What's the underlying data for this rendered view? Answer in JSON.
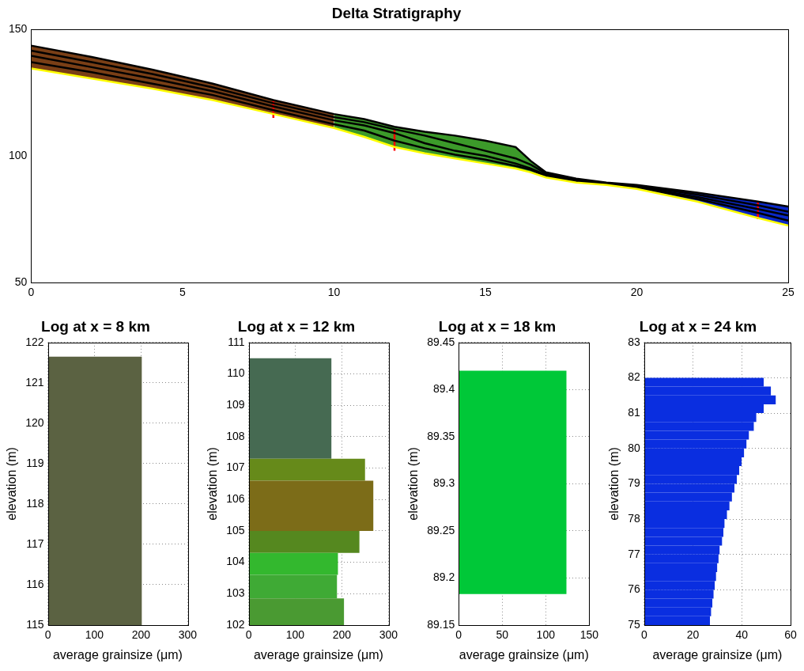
{
  "chart_data": [
    {
      "type": "line",
      "title": "Delta Stratigraphy",
      "xlim": [
        0,
        25
      ],
      "xticks": [
        0,
        5,
        10,
        15,
        20,
        25
      ],
      "ylim": [
        50,
        150
      ],
      "yticks": [
        50,
        100,
        150
      ],
      "grid": false,
      "series": [
        {
          "type": "area",
          "color": "#7a3f16",
          "x": [
            0,
            2,
            4,
            6,
            8,
            10
          ],
          "values": [
            143.5,
            139,
            134,
            128.5,
            122,
            116.5
          ],
          "lower": [
            134.5,
            130.5,
            126.5,
            122,
            116.5,
            111
          ]
        },
        {
          "type": "area",
          "color": "#3c9a2a",
          "x": [
            10,
            11,
            12,
            13,
            14,
            15,
            16,
            16.5,
            17
          ],
          "values": [
            116.5,
            114.5,
            111.5,
            109.5,
            108,
            106,
            103.5,
            98,
            93.5
          ],
          "lower": [
            111,
            107.5,
            103.5,
            101,
            99,
            97,
            95,
            93.5,
            91.5
          ]
        },
        {
          "type": "area",
          "color": "#0a28c8",
          "x": [
            17,
            18,
            19,
            20,
            22,
            24,
            25
          ],
          "values": [
            93.5,
            91,
            89.5,
            88.5,
            85.5,
            82,
            80
          ],
          "lower": [
            91.5,
            89.5,
            88.5,
            87,
            82,
            75.5,
            72.5
          ]
        },
        {
          "type": "line",
          "color": "#ffff00",
          "x": [
            0,
            2,
            4,
            6,
            8,
            10,
            11,
            12,
            13,
            14,
            15,
            16,
            16.5,
            17,
            18,
            19,
            20,
            22,
            24,
            25
          ],
          "values": [
            134.5,
            130.5,
            126.5,
            122,
            116.5,
            111,
            107.5,
            103.5,
            101,
            99,
            97,
            95,
            93.5,
            91.5,
            89.5,
            88.5,
            87,
            82,
            75.5,
            72.5
          ]
        },
        {
          "type": "line",
          "color": "#000000",
          "x": [
            0,
            2,
            4,
            6,
            8,
            10,
            11,
            12,
            13,
            14,
            15,
            16,
            16.5,
            17,
            18,
            19,
            20,
            22,
            24,
            25
          ],
          "values": [
            137,
            133,
            128.5,
            124,
            118,
            112.5,
            110,
            106,
            103,
            100.5,
            98.5,
            96,
            94.5,
            92,
            89.8,
            88.8,
            87.5,
            83,
            77.5,
            74.5
          ]
        },
        {
          "type": "line",
          "color": "#000000",
          "x": [
            0,
            2,
            4,
            6,
            8,
            10,
            11,
            12,
            13,
            14,
            15,
            16,
            16.5,
            17,
            18,
            19,
            20,
            22,
            24,
            25
          ],
          "values": [
            139.5,
            135,
            130.5,
            125.5,
            119.5,
            114,
            112,
            109,
            105,
            102,
            100,
            97,
            95,
            92.5,
            90.2,
            89,
            87.8,
            83.8,
            79,
            76.5
          ]
        },
        {
          "type": "line",
          "color": "#000000",
          "x": [
            0,
            2,
            4,
            6,
            8,
            10,
            11,
            12,
            13,
            14,
            15,
            16,
            16.5,
            17,
            18,
            19,
            20,
            22,
            24,
            25
          ],
          "values": [
            141.5,
            137,
            132.3,
            127,
            120.8,
            115.3,
            113.3,
            110.5,
            108,
            105,
            102,
            99,
            96.5,
            93,
            90.6,
            89.2,
            88.2,
            84.7,
            80.5,
            78
          ]
        },
        {
          "type": "line",
          "color": "#000000",
          "x": [
            0,
            2,
            4,
            6,
            8,
            10,
            11,
            12,
            13,
            14,
            15,
            16,
            16.5,
            17,
            18,
            19,
            20,
            22,
            24,
            25
          ],
          "values": [
            143.5,
            139,
            134,
            128.5,
            122,
            116.5,
            114.5,
            111.5,
            109.5,
            108,
            106,
            103.5,
            98,
            93.5,
            91,
            89.5,
            88.5,
            85.5,
            82,
            80
          ]
        },
        {
          "type": "line",
          "color": "#ff0000",
          "x": [
            8,
            8
          ],
          "values": [
            115,
            121.7
          ]
        },
        {
          "type": "line",
          "color": "#ff0000",
          "x": [
            12,
            12
          ],
          "values": [
            102,
            110.5
          ]
        },
        {
          "type": "line",
          "color": "#ff0000",
          "x": [
            24,
            24
          ],
          "values": [
            75,
            82
          ]
        }
      ]
    },
    {
      "type": "bar",
      "orientation": "horizontal",
      "title": "Log at x = 8 km",
      "x_label": "average grainsize (μm)",
      "y_label": "elevation (m)",
      "bins": [
        115,
        121.65
      ],
      "values": [
        202
      ],
      "colors": [
        "#5b6242"
      ],
      "xlim": [
        0,
        300
      ],
      "xticks": [
        0,
        100,
        200,
        300
      ],
      "ylim": [
        115,
        122
      ],
      "yticks": [
        115,
        116,
        117,
        118,
        119,
        120,
        121,
        122
      ],
      "grid": true
    },
    {
      "type": "bar",
      "orientation": "horizontal",
      "title": "Log at x = 12 km",
      "x_label": "average grainsize (μm)",
      "y_label": "elevation (m)",
      "bins": [
        102,
        102.85,
        103.6,
        104.3,
        105,
        106.6,
        107.3,
        110.5
      ],
      "values": [
        205,
        190,
        192,
        238,
        268,
        250,
        178
      ],
      "colors": [
        "#4a9a32",
        "#3faa35",
        "#33b82e",
        "#55881f",
        "#7c6c18",
        "#668a1a",
        "#466a52"
      ],
      "xlim": [
        0,
        300
      ],
      "xticks": [
        0,
        100,
        200,
        300
      ],
      "ylim": [
        102,
        111
      ],
      "yticks": [
        102,
        103,
        104,
        105,
        106,
        107,
        108,
        109,
        110,
        111
      ],
      "grid": true
    },
    {
      "type": "bar",
      "orientation": "horizontal",
      "title": "Log at x = 18 km",
      "x_label": "average grainsize (μm)",
      "y_label": "elevation (m)",
      "bins": [
        89.183,
        89.42
      ],
      "values": [
        124
      ],
      "colors": [
        "#00c838"
      ],
      "xlim": [
        0,
        150
      ],
      "xticks": [
        0,
        50,
        100,
        150
      ],
      "ylim": [
        89.15,
        89.45
      ],
      "yticks": [
        89.15,
        89.2,
        89.25,
        89.3,
        89.35,
        89.4,
        89.45
      ],
      "grid": true
    },
    {
      "type": "bar",
      "orientation": "horizontal",
      "title": "Log at x = 24 km",
      "x_label": "average grainsize (μm)",
      "y_label": "elevation (m)",
      "bins": [
        75,
        75.25,
        75.5,
        75.75,
        76,
        76.25,
        76.5,
        76.75,
        77,
        77.25,
        77.5,
        77.75,
        78,
        78.25,
        78.5,
        78.75,
        79,
        79.25,
        79.5,
        79.75,
        80,
        80.25,
        80.5,
        80.75,
        81,
        81.25,
        81.5,
        81.75,
        82
      ],
      "values": [
        27,
        27.5,
        28,
        28.5,
        29,
        29.5,
        30,
        30.5,
        31,
        32,
        32.5,
        33,
        34,
        35,
        36,
        37,
        38,
        39,
        40,
        41,
        42,
        43,
        45,
        46,
        49,
        54,
        52,
        49
      ],
      "color": "#0a2ee0",
      "xlim": [
        0,
        60
      ],
      "xticks": [
        0,
        20,
        40,
        60
      ],
      "ylim": [
        75,
        83
      ],
      "yticks": [
        75,
        76,
        77,
        78,
        79,
        80,
        81,
        82,
        83
      ],
      "grid": true
    }
  ]
}
